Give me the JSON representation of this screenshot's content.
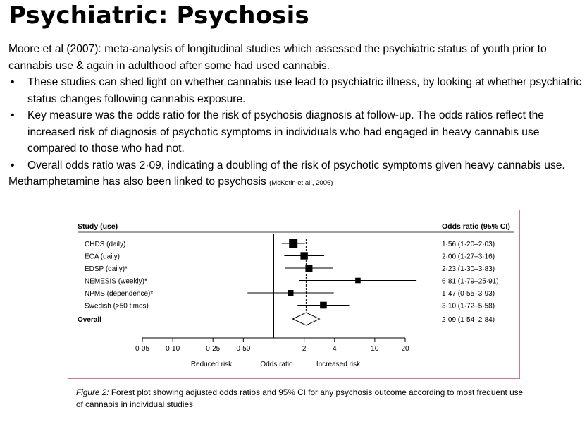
{
  "slide": {
    "title": "Psychiatric: Psychosis",
    "intro": "Moore et al (2007): meta-analysis of longitudinal studies which assessed the psychiatric status of youth prior to cannabis use & again in adulthood after some had used cannabis.",
    "bullets": [
      "These studies can shed light on whether cannabis use lead to psychiatric illness, by looking at whether psychiatric status changes following cannabis exposure.",
      "Key measure was the odds ratio for the risk of psychosis diagnosis at follow-up. The odds ratios reflect the increased risk of diagnosis of psychotic symptoms in individuals who had engaged in heavy cannabis use compared to those who had not.",
      "Overall odds ratio was 2·09, indicating a doubling of the risk of psychotic symptoms given heavy cannabis use."
    ],
    "footer_text": "Methamphetamine has also been linked to psychosis ",
    "footer_cite": "(McKetin et al., 2006)"
  },
  "figure": {
    "caption_label": "Figure 2:",
    "caption_text": " Forest plot showing adjusted odds ratios and 95% CI for any psychosis outcome according to most frequent use of cannabis in individual studies"
  },
  "chart_data": {
    "type": "forest",
    "left_header": "Study (use)",
    "right_header": "Odds ratio (95% CI)",
    "xscale": "log",
    "xlim": [
      0.05,
      20
    ],
    "xticks": [
      0.05,
      0.1,
      0.25,
      0.5,
      2,
      4,
      10,
      20
    ],
    "xtick_labels": [
      "0·05",
      "0·10",
      "0·25",
      "0·50",
      "2",
      "4",
      "10",
      "20"
    ],
    "xlabel_left": "Reduced risk",
    "xlabel_center": "Odds ratio",
    "xlabel_right": "Increased risk",
    "reference_line": 1,
    "studies": [
      {
        "label": "CHDS (daily)",
        "or": 1.56,
        "lo": 1.2,
        "hi": 2.03,
        "text": "1·56 (1·20–2·03)",
        "weight": 1.0
      },
      {
        "label": "ECA (daily)",
        "or": 2.0,
        "lo": 1.27,
        "hi": 3.16,
        "text": "2·00 (1·27–3·16)",
        "weight": 0.8
      },
      {
        "label": "EDSP (daily)*",
        "or": 2.23,
        "lo": 1.3,
        "hi": 3.83,
        "text": "2·23 (1·30–3·83)",
        "weight": 0.75
      },
      {
        "label": "NEMESIS (weekly)*",
        "or": 6.81,
        "lo": 1.79,
        "hi": 25.91,
        "text": "6·81 (1·79–25·91)",
        "weight": 0.45
      },
      {
        "label": "NPMS (dependence)*",
        "or": 1.47,
        "lo": 0.55,
        "hi": 3.93,
        "text": "1·47 (0·55–3·93)",
        "weight": 0.5
      },
      {
        "label": "Swedish (>50 times)",
        "or": 3.1,
        "lo": 1.72,
        "hi": 5.58,
        "text": "3·10 (1·72–5·58)",
        "weight": 0.7
      }
    ],
    "overall": {
      "label": "Overall",
      "or": 2.09,
      "lo": 1.54,
      "hi": 2.84,
      "text": "2·09 (1·54–2·84)"
    }
  }
}
